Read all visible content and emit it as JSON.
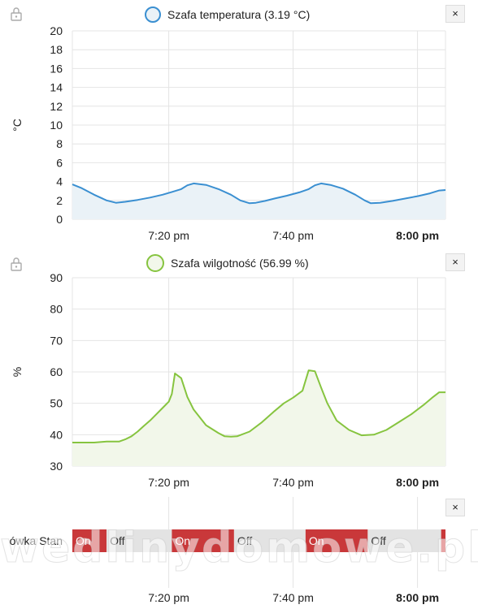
{
  "watermark": "wedlinydomowe.pl",
  "time_axis": {
    "ticks": [
      {
        "label": "7:20 pm",
        "bold": false,
        "t": 20.0
      },
      {
        "label": "7:40 pm",
        "bold": false,
        "t": 40.0
      },
      {
        "label": "8:00 pm",
        "bold": true,
        "t": 60.0
      }
    ],
    "domain": [
      4.5,
      64.5
    ]
  },
  "temperature": {
    "legend": "Szafa temperatura (3.19 °C)",
    "color": "#3a8fd1",
    "fill": "#eaf2f7",
    "close_label": "×",
    "chart_data": {
      "type": "line",
      "ylabel": "°C",
      "ylim": [
        0,
        20
      ],
      "yticks": [
        0,
        2,
        4,
        6,
        8,
        10,
        12,
        14,
        16,
        18,
        20
      ],
      "x": [
        4.5,
        6,
        8,
        10,
        11.5,
        13,
        15,
        17,
        19,
        20.5,
        22,
        23,
        24,
        26,
        28,
        30,
        31.5,
        33,
        34,
        35.5,
        37,
        39,
        41,
        42.5,
        43.5,
        44.5,
        46,
        48,
        50,
        51.5,
        52.5,
        54,
        56,
        58,
        60,
        62,
        63.5,
        64.5
      ],
      "series": [
        {
          "values": [
            3.7,
            3.3,
            2.6,
            2.0,
            1.75,
            1.85,
            2.05,
            2.3,
            2.6,
            2.9,
            3.2,
            3.6,
            3.8,
            3.65,
            3.2,
            2.6,
            2.0,
            1.7,
            1.75,
            1.95,
            2.2,
            2.5,
            2.85,
            3.2,
            3.6,
            3.8,
            3.65,
            3.25,
            2.6,
            2.0,
            1.7,
            1.75,
            1.95,
            2.2,
            2.45,
            2.75,
            3.05,
            3.1
          ]
        }
      ]
    }
  },
  "humidity": {
    "legend": "Szafa wilgotność (56.99 %)",
    "color": "#86c43f",
    "fill": "#f2f7ea",
    "close_label": "×",
    "chart_data": {
      "type": "line",
      "ylabel": "%",
      "ylim": [
        30,
        90
      ],
      "yticks": [
        30,
        40,
        50,
        60,
        70,
        80,
        90
      ],
      "x": [
        4.5,
        8,
        10,
        12,
        13,
        14,
        15,
        16,
        17,
        18,
        19,
        20,
        20.5,
        21,
        22,
        23,
        24,
        26,
        28,
        29,
        30,
        31,
        33,
        35,
        37,
        38.5,
        40,
        41.5,
        42.5,
        43.5,
        44.5,
        45.5,
        47,
        49,
        51,
        53,
        55,
        57,
        59,
        61,
        62.5,
        63.5,
        64.5
      ],
      "series": [
        {
          "values": [
            37.5,
            37.5,
            37.8,
            37.8,
            38.5,
            39.5,
            41,
            42.8,
            44.5,
            46.5,
            48.5,
            50.5,
            53,
            59.5,
            58,
            52,
            48,
            43,
            40.5,
            39.5,
            39.4,
            39.5,
            41,
            44,
            47.5,
            50,
            51.8,
            54,
            60.5,
            60.2,
            55,
            50,
            44.5,
            41.5,
            39.8,
            40,
            41.5,
            44,
            46.5,
            49.5,
            52,
            53.5,
            53.5
          ]
        }
      ]
    }
  },
  "state": {
    "label": "ówka Stan",
    "close_label": "×",
    "on_color": "#c9383a",
    "off_color": "#e3e3e3",
    "segments": [
      {
        "label": "On",
        "state": "on",
        "start": 4.5,
        "end": 10.0
      },
      {
        "label": "Off",
        "state": "off",
        "start": 10.0,
        "end": 20.5
      },
      {
        "label": "On",
        "state": "on",
        "start": 20.5,
        "end": 30.5
      },
      {
        "label": "Off",
        "state": "off",
        "start": 30.5,
        "end": 42.0
      },
      {
        "label": "On",
        "state": "on",
        "start": 42.0,
        "end": 52.0
      },
      {
        "label": "Off",
        "state": "off",
        "start": 52.0,
        "end": 63.8
      },
      {
        "label": "",
        "state": "on",
        "start": 63.8,
        "end": 64.5
      }
    ]
  }
}
